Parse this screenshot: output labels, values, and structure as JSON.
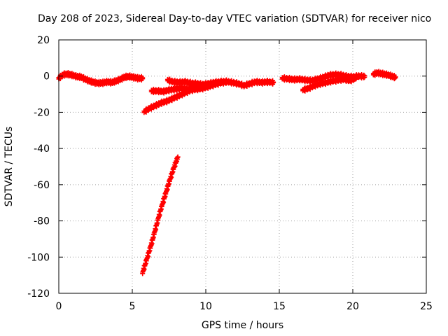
{
  "chart_data": {
    "type": "scatter",
    "title": "Day 208 of 2023, Sidereal Day-to-day VTEC variation (SDTVAR) for receiver nico",
    "xlabel": "GPS time / hours",
    "ylabel": "SDTVAR / TECUs",
    "xlim": [
      0,
      25
    ],
    "ylim": [
      -120,
      20
    ],
    "xticks": [
      0,
      5,
      10,
      15,
      20,
      25
    ],
    "yticks": [
      20,
      0,
      -20,
      -40,
      -60,
      -80,
      -100,
      -120
    ],
    "grid": true,
    "marker": "+",
    "color": "#ff0000",
    "segments": [
      [
        [
          0.0,
          -1.5
        ],
        [
          0.3,
          0.5
        ],
        [
          0.6,
          0.8
        ],
        [
          0.9,
          0.3
        ],
        [
          1.2,
          -0.5
        ],
        [
          1.5,
          -0.8
        ],
        [
          1.8,
          -2.0
        ],
        [
          2.1,
          -3.0
        ],
        [
          2.4,
          -3.8
        ],
        [
          2.7,
          -4.2
        ],
        [
          3.0,
          -4.0
        ],
        [
          3.3,
          -3.5
        ],
        [
          3.6,
          -3.8
        ],
        [
          3.9,
          -3.0
        ],
        [
          4.2,
          -2.0
        ],
        [
          4.5,
          -0.8
        ],
        [
          4.8,
          -0.5
        ],
        [
          5.1,
          -1.0
        ],
        [
          5.4,
          -1.5
        ],
        [
          5.7,
          -1.5
        ]
      ],
      [
        [
          7.4,
          -2.5
        ],
        [
          7.8,
          -3.5
        ],
        [
          8.2,
          -3.8
        ],
        [
          8.6,
          -3.5
        ],
        [
          9.0,
          -4.2
        ],
        [
          9.4,
          -4.5
        ],
        [
          9.8,
          -5.0
        ],
        [
          10.2,
          -4.5
        ],
        [
          10.6,
          -3.8
        ],
        [
          11.0,
          -3.5
        ],
        [
          11.4,
          -3.3
        ],
        [
          11.8,
          -3.8
        ],
        [
          12.2,
          -4.5
        ],
        [
          12.6,
          -5.5
        ],
        [
          13.0,
          -4.5
        ],
        [
          13.4,
          -3.5
        ],
        [
          13.8,
          -3.8
        ],
        [
          14.2,
          -3.5
        ],
        [
          14.6,
          -3.8
        ]
      ],
      [
        [
          5.8,
          -20.0
        ],
        [
          6.2,
          -18.0
        ],
        [
          6.6,
          -16.5
        ],
        [
          7.0,
          -15.0
        ],
        [
          7.4,
          -14.0
        ],
        [
          7.8,
          -12.5
        ],
        [
          8.2,
          -11.0
        ],
        [
          8.6,
          -9.5
        ],
        [
          9.0,
          -8.0
        ],
        [
          9.4,
          -7.5
        ],
        [
          9.8,
          -7.0
        ],
        [
          10.2,
          -6.0
        ],
        [
          10.6,
          -5.0
        ],
        [
          11.0,
          -4.0
        ],
        [
          11.4,
          -3.5
        ]
      ],
      [
        [
          6.3,
          -8.5
        ],
        [
          6.7,
          -8.5
        ],
        [
          7.1,
          -8.8
        ],
        [
          7.5,
          -8.0
        ],
        [
          7.9,
          -7.5
        ],
        [
          8.3,
          -7.0
        ],
        [
          8.7,
          -7.5
        ],
        [
          9.1,
          -7.0
        ],
        [
          9.5,
          -6.5
        ],
        [
          9.9,
          -6.0
        ],
        [
          10.3,
          -5.5
        ]
      ],
      [
        [
          5.7,
          -109.0
        ],
        [
          6.0,
          -101.0
        ],
        [
          6.3,
          -93.0
        ],
        [
          6.6,
          -84.0
        ],
        [
          6.9,
          -75.0
        ],
        [
          7.2,
          -67.0
        ],
        [
          7.5,
          -59.0
        ],
        [
          7.8,
          -51.5
        ],
        [
          8.1,
          -45.0
        ]
      ],
      [
        [
          15.2,
          -1.5
        ],
        [
          15.6,
          -1.8
        ],
        [
          16.0,
          -2.2
        ],
        [
          16.4,
          -2.0
        ],
        [
          16.8,
          -2.5
        ],
        [
          17.2,
          -2.8
        ],
        [
          17.6,
          -2.0
        ],
        [
          18.0,
          -1.0
        ],
        [
          18.4,
          0.2
        ],
        [
          18.8,
          0.5
        ],
        [
          19.2,
          0.3
        ],
        [
          19.6,
          -0.5
        ],
        [
          20.0,
          -0.8
        ],
        [
          20.4,
          -0.3
        ],
        [
          20.8,
          -0.5
        ]
      ],
      [
        [
          16.6,
          -8.0
        ],
        [
          17.0,
          -7.0
        ],
        [
          17.4,
          -5.5
        ],
        [
          17.8,
          -4.5
        ],
        [
          18.2,
          -3.8
        ],
        [
          18.6,
          -3.0
        ],
        [
          19.0,
          -2.5
        ],
        [
          19.4,
          -2.0
        ],
        [
          19.8,
          -2.8
        ],
        [
          20.2,
          -1.5
        ]
      ],
      [
        [
          21.4,
          0.8
        ],
        [
          21.7,
          1.5
        ],
        [
          22.0,
          1.0
        ],
        [
          22.3,
          0.5
        ],
        [
          22.6,
          -0.2
        ],
        [
          22.9,
          -1.0
        ]
      ]
    ]
  }
}
